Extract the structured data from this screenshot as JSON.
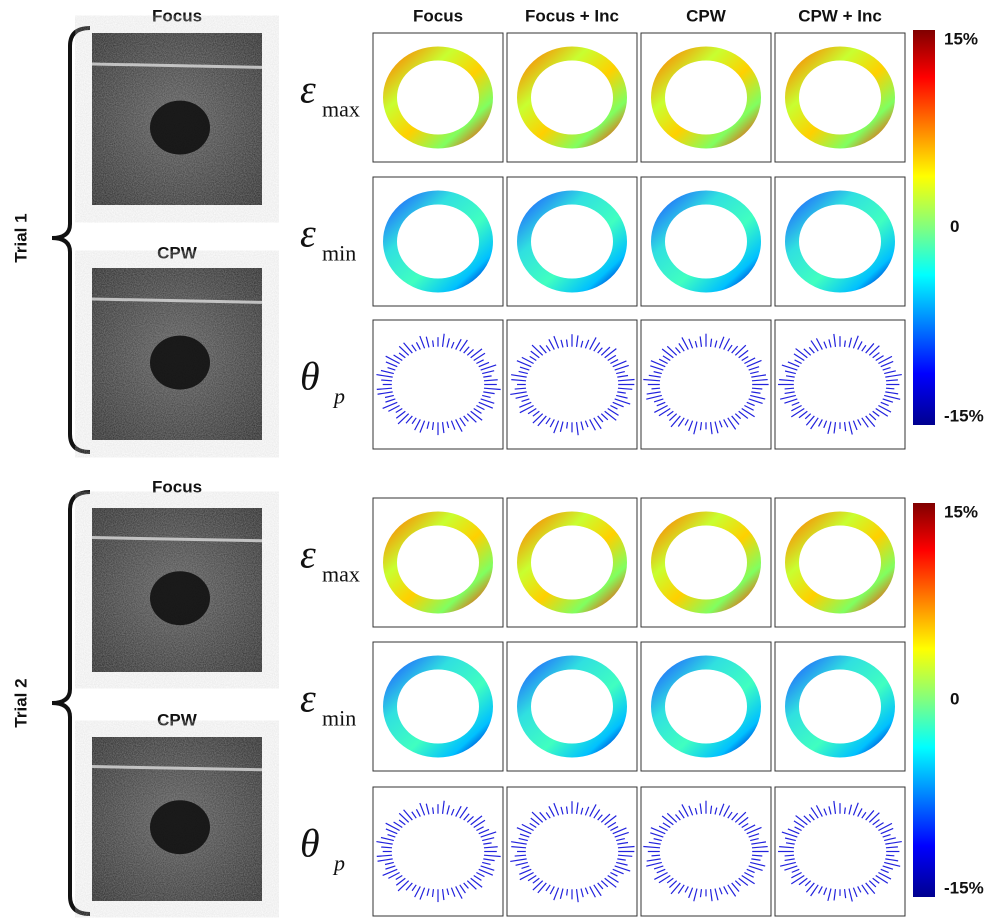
{
  "columns": [
    "Focus",
    "Focus + Inc",
    "CPW",
    "CPW + Inc"
  ],
  "trials": [
    {
      "label": "Trial 1",
      "images": [
        "Focus",
        "CPW"
      ],
      "rows": [
        {
          "symbol": "ε",
          "subscript": "max"
        },
        {
          "symbol": "ε",
          "subscript": "min"
        },
        {
          "symbol": "θ",
          "subscript": "p"
        }
      ],
      "colorbar": [
        "15%",
        "0",
        "-15%"
      ]
    },
    {
      "label": "Trial 2",
      "images": [
        "Focus",
        "CPW"
      ],
      "rows": [
        {
          "symbol": "ε",
          "subscript": "max"
        },
        {
          "symbol": "ε",
          "subscript": "min"
        },
        {
          "symbol": "θ",
          "subscript": "p"
        }
      ],
      "colorbar": [
        "15%",
        "0",
        "-15%"
      ]
    }
  ]
}
